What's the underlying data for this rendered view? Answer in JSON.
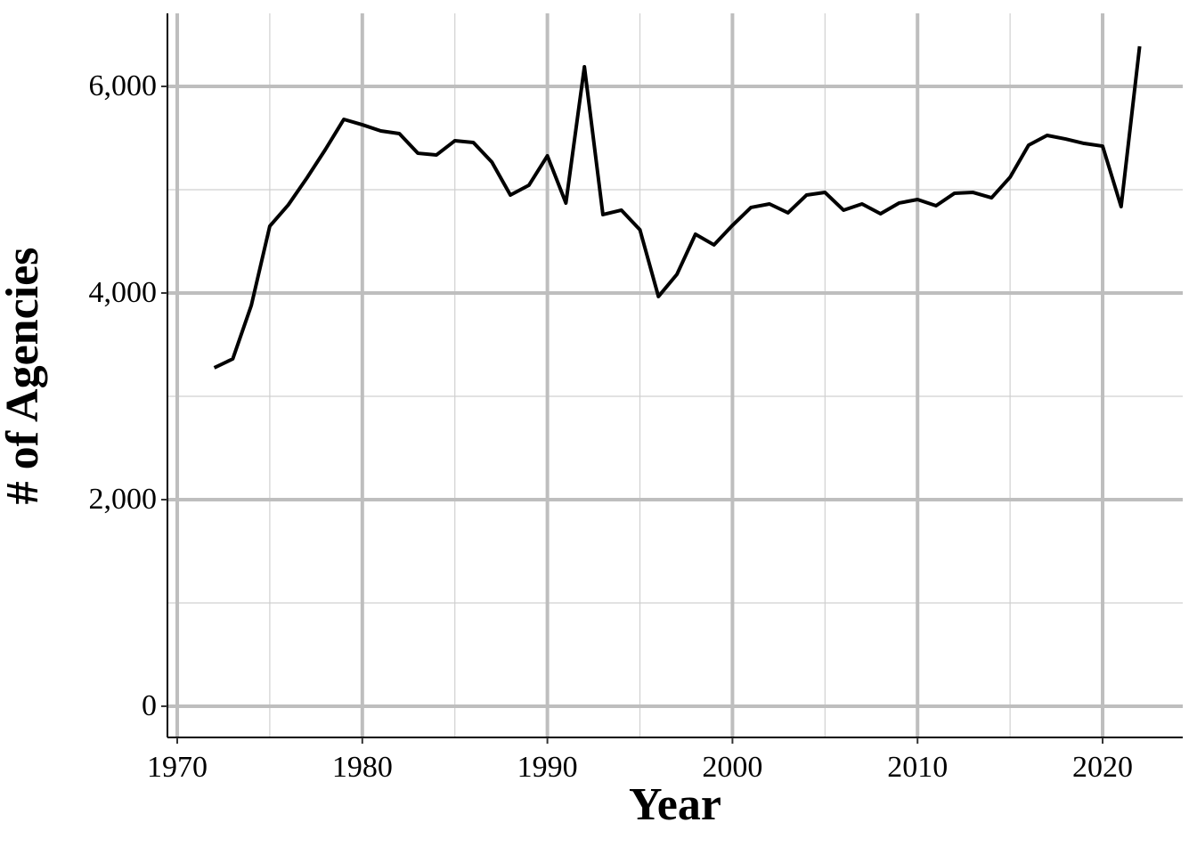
{
  "chart_data": {
    "type": "line",
    "xlabel": "Year",
    "ylabel": "# of Agencies",
    "x": [
      1972,
      1973,
      1974,
      1975,
      1976,
      1977,
      1978,
      1979,
      1980,
      1981,
      1982,
      1983,
      1984,
      1985,
      1986,
      1987,
      1988,
      1989,
      1990,
      1991,
      1992,
      1993,
      1994,
      1995,
      1996,
      1997,
      1998,
      1999,
      2000,
      2001,
      2002,
      2003,
      2004,
      2005,
      2006,
      2007,
      2008,
      2009,
      2010,
      2011,
      2012,
      2013,
      2014,
      2015,
      2016,
      2017,
      2018,
      2019,
      2020,
      2021,
      2022
    ],
    "values": [
      3276,
      3362,
      3879,
      4647,
      4853,
      5112,
      5388,
      5681,
      5629,
      5569,
      5543,
      5353,
      5336,
      5474,
      5457,
      5267,
      4948,
      5043,
      5328,
      4871,
      6190,
      4759,
      4802,
      4612,
      3966,
      4181,
      4569,
      4466,
      4655,
      4828,
      4862,
      4776,
      4948,
      4974,
      4802,
      4862,
      4767,
      4871,
      4905,
      4845,
      4966,
      4974,
      4922,
      5121,
      5431,
      5526,
      5491,
      5448,
      5422,
      4836,
      6388
    ],
    "color": "#000000",
    "xlim": [
      1969.47,
      2024.33
    ],
    "ylim": [
      -302,
      6707
    ],
    "xticks": [
      1970,
      1980,
      1990,
      2000,
      2010,
      2020
    ],
    "yticks": [
      0,
      {
        "value": 2000,
        "label": "2,000"
      },
      {
        "value": 4000,
        "label": "4,000"
      },
      {
        "value": 6000,
        "label": "6,000"
      }
    ],
    "minor_xticks": [
      1975,
      1985,
      1995,
      2005,
      2015
    ],
    "minor_yticks": [
      1000,
      3000,
      5000
    ],
    "grid": true
  }
}
